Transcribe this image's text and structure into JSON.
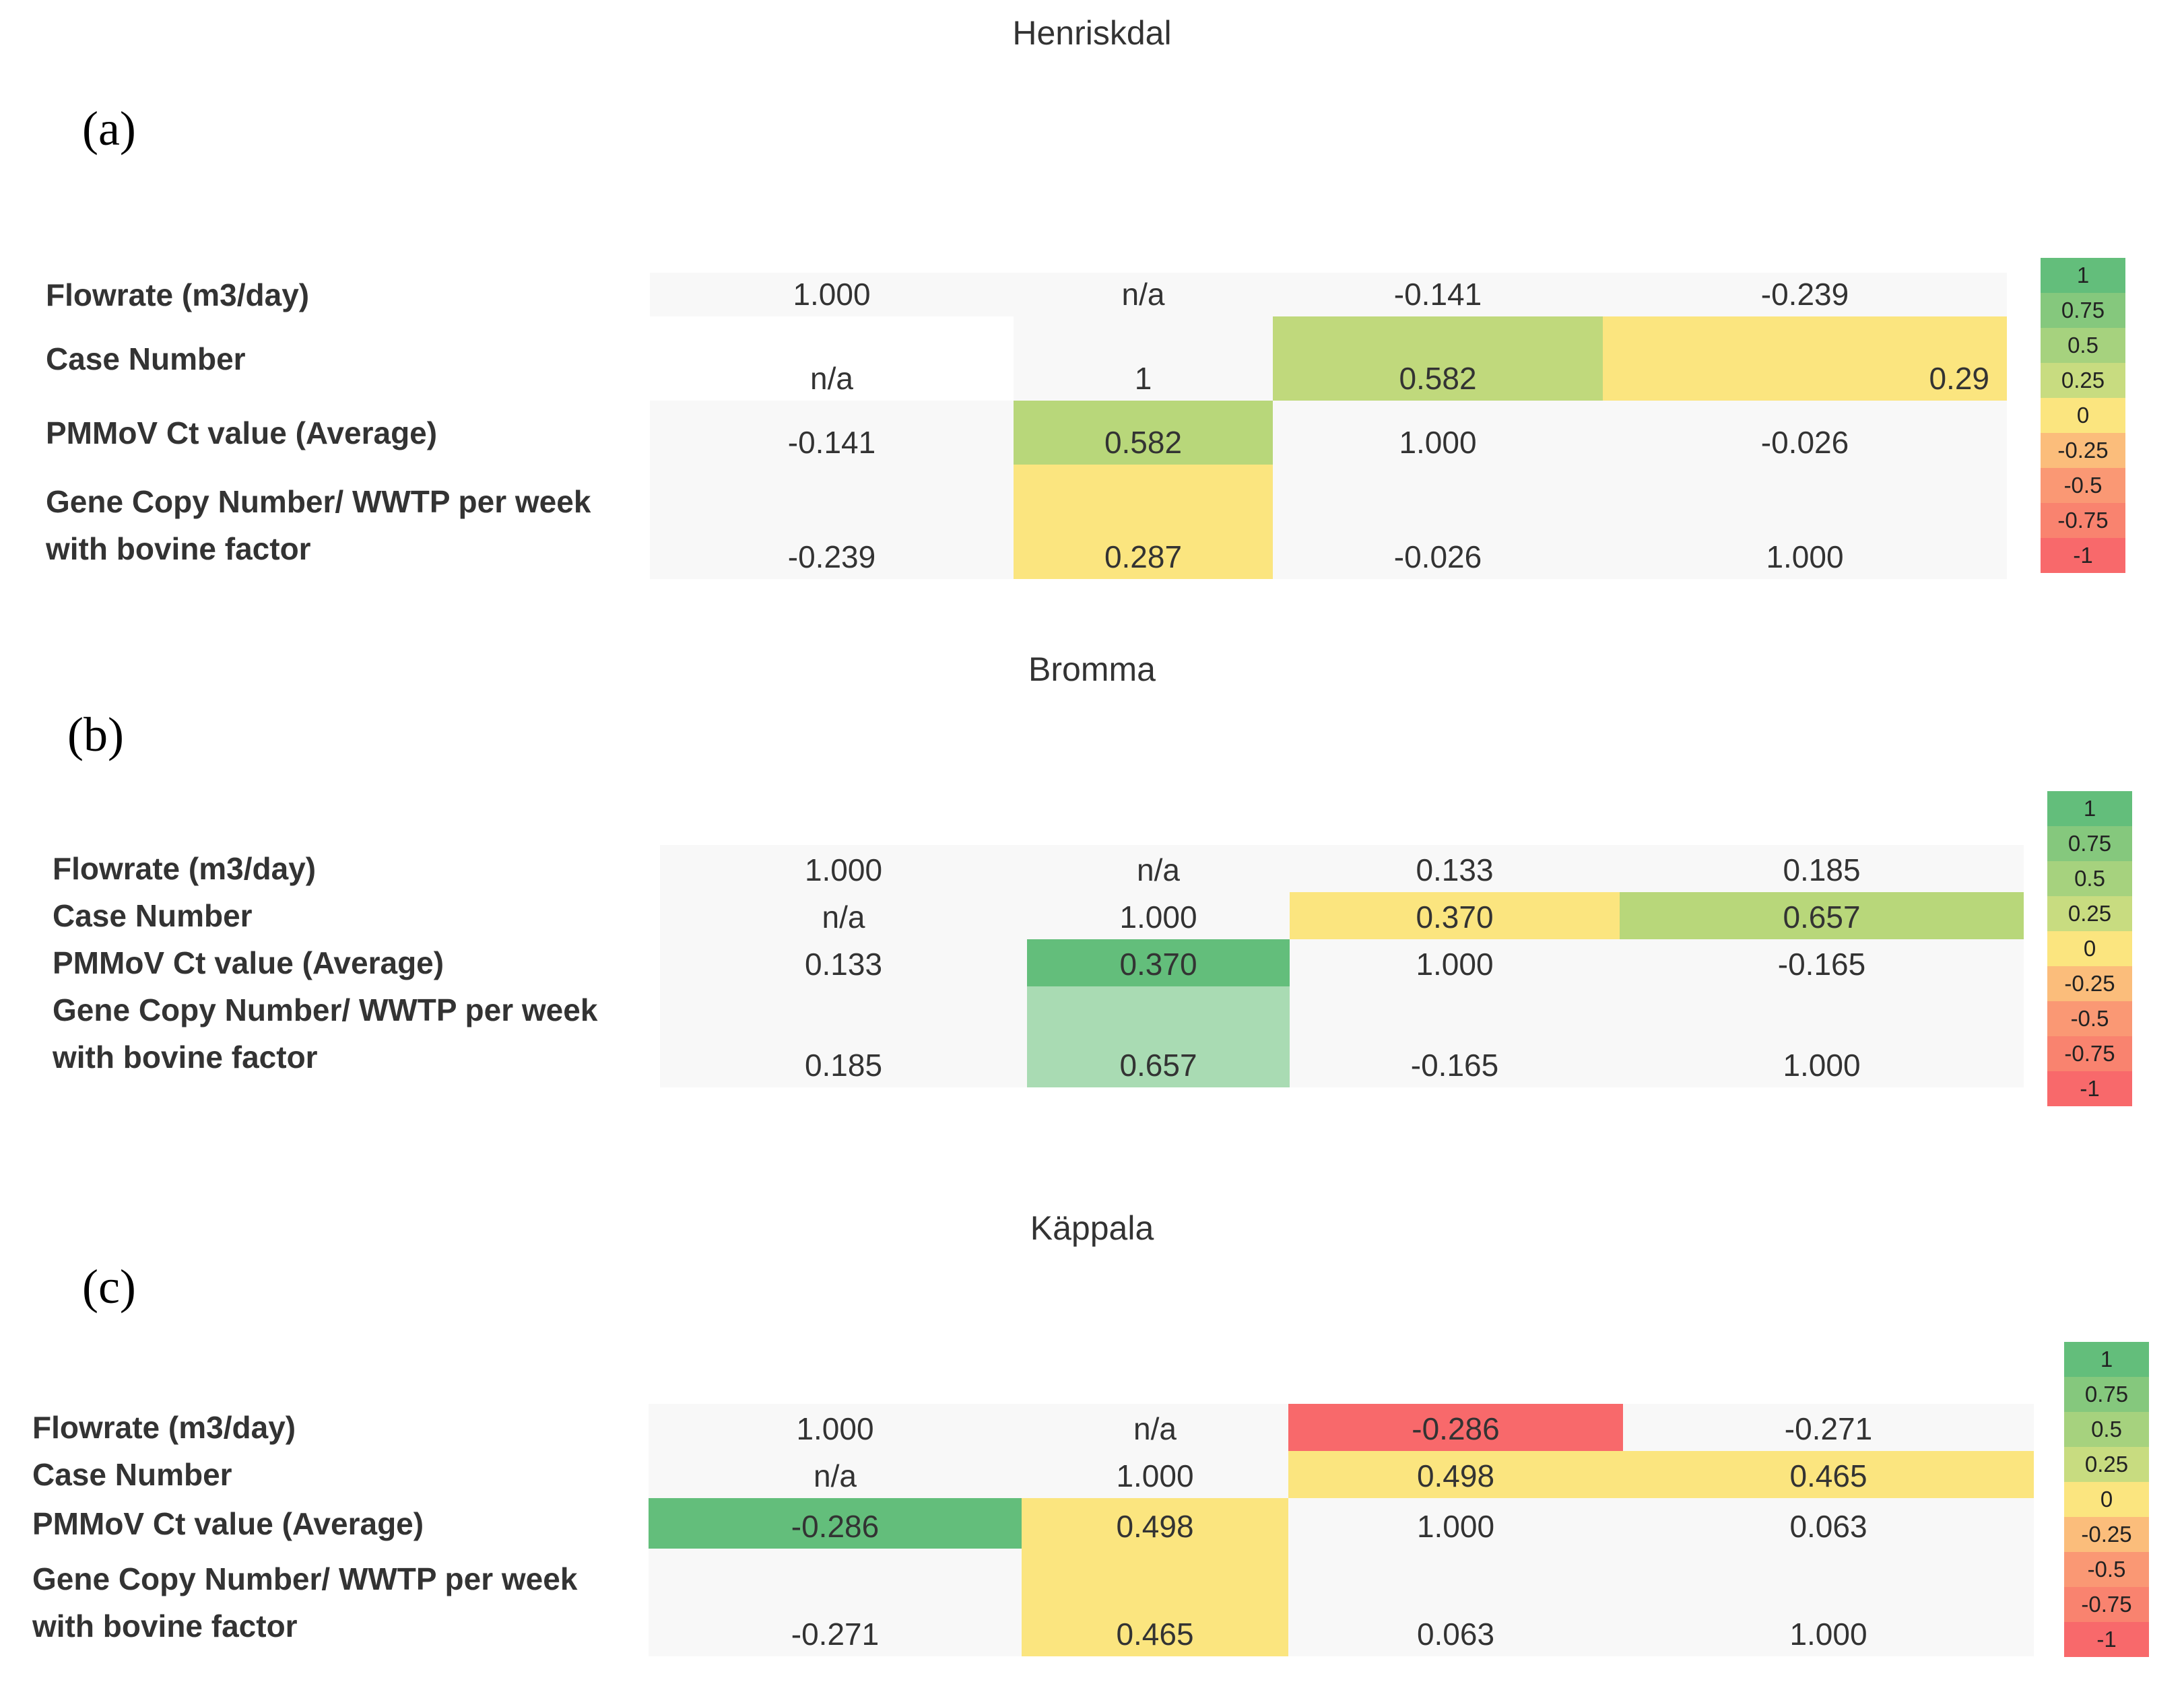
{
  "panels": [
    {
      "label": "(a)",
      "title": "Henriskdal",
      "columns": [
        "Flowrate (m3/day)",
        "Case Number",
        "PMMoV Ct value (Average)",
        "Gene Copy Number/ WWTP per week with bovine factor"
      ],
      "rows": [
        {
          "label": "Flowrate (m3/day)",
          "cells": [
            {
              "text": "1.000",
              "color": "#f8f8f8"
            },
            {
              "text": "n/a",
              "color": "#f8f8f8"
            },
            {
              "text": "-0.141",
              "color": "#f8f8f8"
            },
            {
              "text": "-0.239",
              "color": "#f8f8f8"
            }
          ]
        },
        {
          "label": "Case Number",
          "cells": [
            {
              "text": "n/a",
              "color": "#ffffff"
            },
            {
              "text": "1",
              "color": "#f8f8f8"
            },
            {
              "text": "0.582",
              "color": "#c0d97c"
            },
            {
              "text": "0.29",
              "color": "#fbe57f"
            }
          ]
        },
        {
          "label": "PMMoV Ct value (Average)",
          "cells": [
            {
              "text": "-0.141",
              "color": "#f8f8f8"
            },
            {
              "text": "0.582",
              "color": "#b8d77a"
            },
            {
              "text": "1.000",
              "color": "#f8f8f8"
            },
            {
              "text": "-0.026",
              "color": "#f8f8f8"
            }
          ]
        },
        {
          "label": "Gene Copy Number/ WWTP per week with bovine factor",
          "cells": [
            {
              "text": "-0.239",
              "color": "#f8f8f8"
            },
            {
              "text": "0.287",
              "color": "#fbe57f"
            },
            {
              "text": "-0.026",
              "color": "#f8f8f8"
            },
            {
              "text": "1.000",
              "color": "#f8f8f8"
            }
          ]
        }
      ]
    },
    {
      "label": "(b)",
      "title": "Bromma",
      "columns": [
        "Flowrate (m3/day)",
        "Case Number",
        "PMMoV Ct value (Average)",
        "Gene Copy Number/ WWTP per week with bovine factor"
      ],
      "rows": [
        {
          "label": "Flowrate (m3/day)",
          "cells": [
            {
              "text": "1.000",
              "color": "#f8f8f8"
            },
            {
              "text": "n/a",
              "color": "#f8f8f8"
            },
            {
              "text": "0.133",
              "color": "#f8f8f8"
            },
            {
              "text": "0.185",
              "color": "#f8f8f8"
            }
          ]
        },
        {
          "label": "Case Number",
          "cells": [
            {
              "text": "n/a",
              "color": "#f8f8f8"
            },
            {
              "text": "1.000",
              "color": "#f8f8f8"
            },
            {
              "text": "0.370",
              "color": "#fbe57f"
            },
            {
              "text": "0.657",
              "color": "#b8d77a"
            }
          ]
        },
        {
          "label": "PMMoV Ct value (Average)",
          "cells": [
            {
              "text": "0.133",
              "color": "#f8f8f8"
            },
            {
              "text": "0.370",
              "color": "#63be7b"
            },
            {
              "text": "1.000",
              "color": "#f8f8f8"
            },
            {
              "text": "-0.165",
              "color": "#f8f8f8"
            }
          ]
        },
        {
          "label": "Gene Copy Number/ WWTP per week with bovine factor",
          "cells": [
            {
              "text": "0.185",
              "color": "#f8f8f8"
            },
            {
              "text": "0.657",
              "color": "#a9dbb3"
            },
            {
              "text": "-0.165",
              "color": "#f8f8f8"
            },
            {
              "text": "1.000",
              "color": "#f8f8f8"
            }
          ]
        }
      ]
    },
    {
      "label": "(c)",
      "title": "Käppala",
      "columns": [
        "Flowrate (m3/day)",
        "Case Number",
        "PMMoV Ct value (Average)",
        "Gene Copy Number/ WWTP per week with bovine factor"
      ],
      "rows": [
        {
          "label": "Flowrate (m3/day)",
          "cells": [
            {
              "text": "1.000",
              "color": "#f8f8f8"
            },
            {
              "text": "n/a",
              "color": "#f8f8f8"
            },
            {
              "text": "-0.286",
              "color": "#f8696b"
            },
            {
              "text": "-0.271",
              "color": "#f8f8f8"
            }
          ]
        },
        {
          "label": "Case Number",
          "cells": [
            {
              "text": "n/a",
              "color": "#f8f8f8"
            },
            {
              "text": "1.000",
              "color": "#f8f8f8"
            },
            {
              "text": "0.498",
              "color": "#fbe57f"
            },
            {
              "text": "0.465",
              "color": "#fbe57f"
            }
          ]
        },
        {
          "label": "PMMoV Ct value (Average)",
          "cells": [
            {
              "text": "-0.286",
              "color": "#63be7b"
            },
            {
              "text": "0.498",
              "color": "#fbe57f"
            },
            {
              "text": "1.000",
              "color": "#f8f8f8"
            },
            {
              "text": "0.063",
              "color": "#f8f8f8"
            }
          ]
        },
        {
          "label": "Gene Copy Number/ WWTP per week with bovine factor",
          "cells": [
            {
              "text": "-0.271",
              "color": "#f8f8f8"
            },
            {
              "text": "0.465",
              "color": "#fbe57f"
            },
            {
              "text": "0.063",
              "color": "#f8f8f8"
            },
            {
              "text": "1.000",
              "color": "#f8f8f8"
            }
          ]
        }
      ]
    }
  ],
  "legend": {
    "items": [
      {
        "label": "1",
        "color": "#63be7b"
      },
      {
        "label": "0.75",
        "color": "#85c87d"
      },
      {
        "label": "0.5",
        "color": "#a6d27e"
      },
      {
        "label": "0.25",
        "color": "#c8dc80"
      },
      {
        "label": "0",
        "color": "#fbe57f"
      },
      {
        "label": "-0.25",
        "color": "#fbbd7b"
      },
      {
        "label": "-0.5",
        "color": "#fa9874"
      },
      {
        "label": "-0.75",
        "color": "#f9836f"
      },
      {
        "label": "-1",
        "color": "#f8696b"
      }
    ]
  },
  "chart_data": [
    {
      "type": "heatmap",
      "title": "Henriskdal",
      "x": [
        "Flowrate (m3/day)",
        "Case Number",
        "PMMoV Ct value (Average)",
        "Gene Copy Number/ WWTP per week with bovine factor"
      ],
      "y": [
        "Flowrate (m3/day)",
        "Case Number",
        "PMMoV Ct value (Average)",
        "Gene Copy Number/ WWTP per week with bovine factor"
      ],
      "values": [
        [
          "1.000",
          "n/a",
          "-0.141",
          "-0.239"
        ],
        [
          "n/a",
          "1",
          "0.582",
          "0.29"
        ],
        [
          "-0.141",
          "0.582",
          "1.000",
          "-0.026"
        ],
        [
          "-0.239",
          "0.287",
          "-0.026",
          "1.000"
        ]
      ]
    },
    {
      "type": "heatmap",
      "title": "Bromma",
      "x": [
        "Flowrate (m3/day)",
        "Case Number",
        "PMMoV Ct value (Average)",
        "Gene Copy Number/ WWTP per week with bovine factor"
      ],
      "y": [
        "Flowrate (m3/day)",
        "Case Number",
        "PMMoV Ct value (Average)",
        "Gene Copy Number/ WWTP per week with bovine factor"
      ],
      "values": [
        [
          "1.000",
          "n/a",
          "0.133",
          "0.185"
        ],
        [
          "n/a",
          "1.000",
          "0.370",
          "0.657"
        ],
        [
          "0.133",
          "0.370",
          "1.000",
          "-0.165"
        ],
        [
          "0.185",
          "0.657",
          "-0.165",
          "1.000"
        ]
      ]
    },
    {
      "type": "heatmap",
      "title": "Käppala",
      "x": [
        "Flowrate (m3/day)",
        "Case Number",
        "PMMoV Ct value (Average)",
        "Gene Copy Number/ WWTP per week with bovine factor"
      ],
      "y": [
        "Flowrate (m3/day)",
        "Case Number",
        "PMMoV Ct value (Average)",
        "Gene Copy Number/ WWTP per week with bovine factor"
      ],
      "values": [
        [
          "1.000",
          "n/a",
          "-0.286",
          "-0.271"
        ],
        [
          "n/a",
          "1.000",
          "0.498",
          "0.465"
        ],
        [
          "-0.286",
          "0.498",
          "1.000",
          "0.063"
        ],
        [
          "-0.271",
          "0.465",
          "0.063",
          "1.000"
        ]
      ]
    }
  ]
}
